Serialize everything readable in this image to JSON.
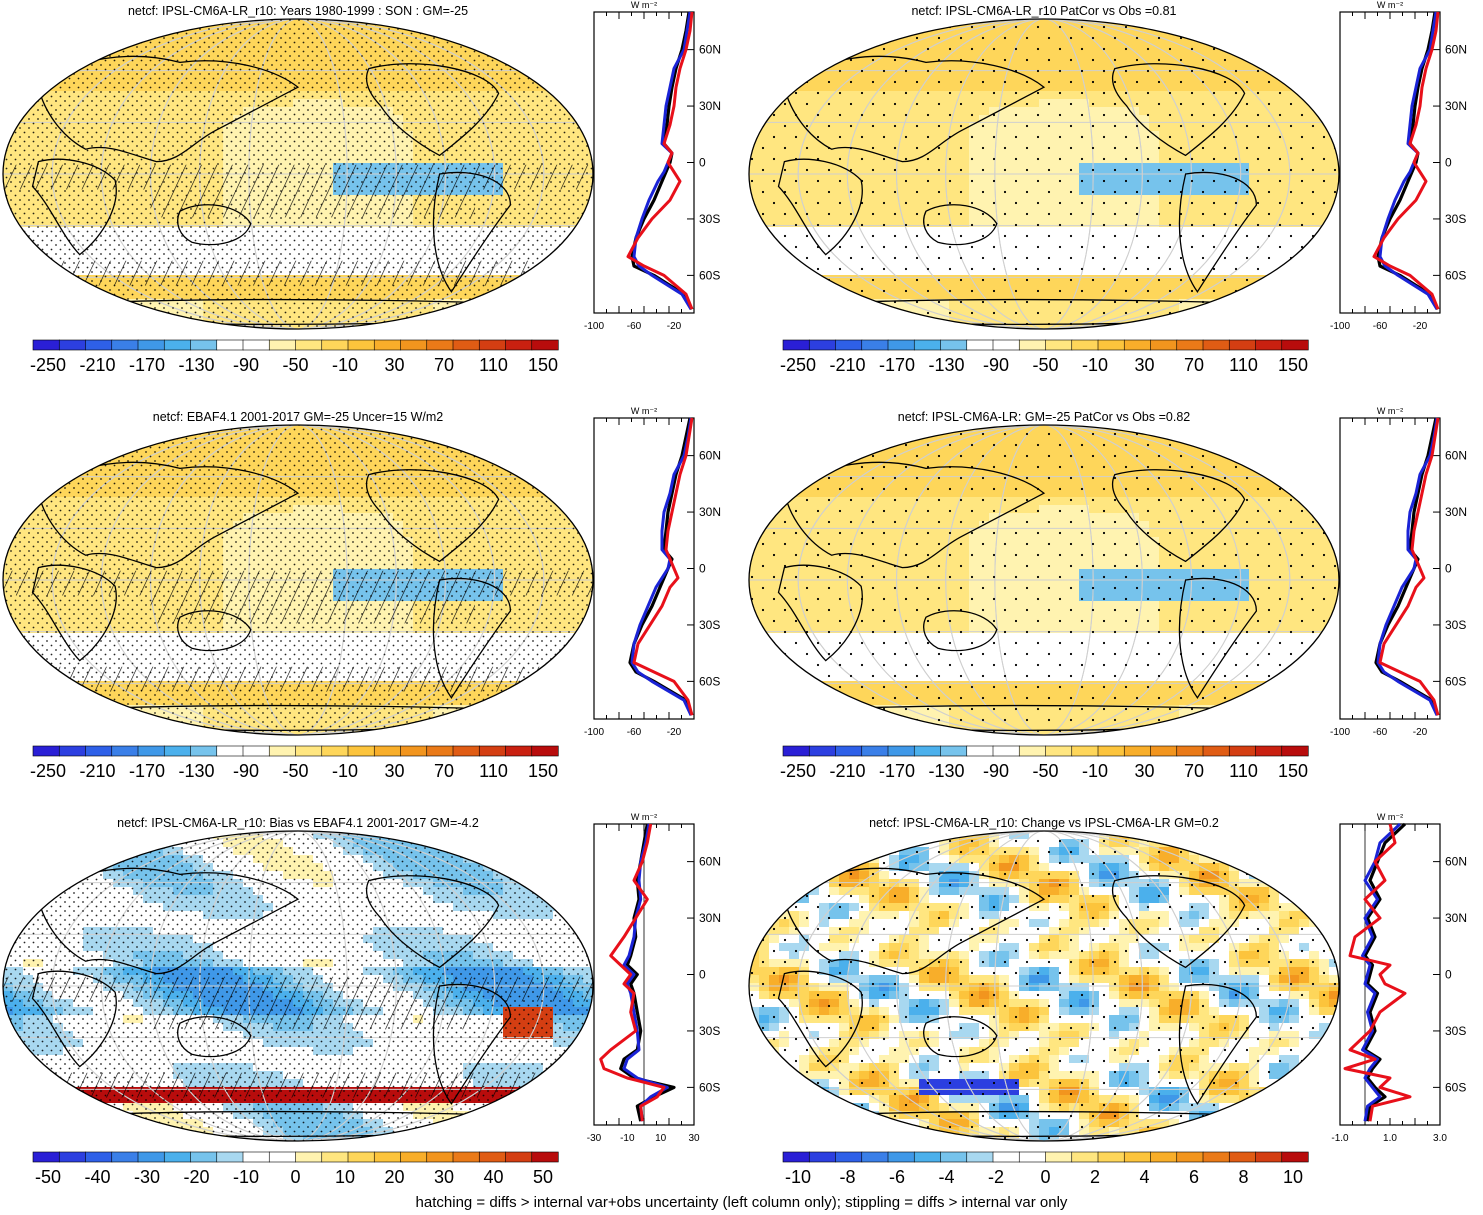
{
  "footer": "hatching = diffs > internal var+obs uncertainty (left column only); stippling = diffs > internal var only",
  "scales": {
    "main": {
      "labels": [
        "-250",
        "-210",
        "-170",
        "-130",
        "-90",
        "-50",
        "-10",
        "30",
        "70",
        "110",
        "150"
      ],
      "colors": [
        "#2a1fd6",
        "#2c3fe0",
        "#2e60e8",
        "#3a7fe8",
        "#3f98e8",
        "#4bb0ec",
        "#76c3ec",
        "#ffffff",
        "#ffffff",
        "#fff3b0",
        "#ffe680",
        "#fed65a",
        "#fcc43c",
        "#f8ae2a",
        "#f2951e",
        "#ea7a18",
        "#e05c14",
        "#d43e12",
        "#c92010",
        "#b80c0c"
      ]
    },
    "bias": {
      "labels": [
        "-50",
        "-40",
        "-30",
        "-20",
        "-10",
        "0",
        "10",
        "20",
        "30",
        "40",
        "50"
      ],
      "colors": [
        "#2a1fd6",
        "#2c3fe0",
        "#2e60e8",
        "#3a7fe8",
        "#3f98e8",
        "#4bb0ec",
        "#76c3ec",
        "#a8d8f0",
        "#ffffff",
        "#ffffff",
        "#fff3b0",
        "#ffe680",
        "#fed65a",
        "#fcc43c",
        "#f8ae2a",
        "#f2951e",
        "#ea7a18",
        "#e05c14",
        "#d43e12",
        "#b80c0c"
      ]
    },
    "change": {
      "labels": [
        "-10",
        "-8",
        "-6",
        "-4",
        "-2",
        "0",
        "2",
        "4",
        "6",
        "8",
        "10"
      ],
      "colors": [
        "#2a1fd6",
        "#2c3fe0",
        "#2e60e8",
        "#3a7fe8",
        "#3f98e8",
        "#4bb0ec",
        "#76c3ec",
        "#a8d8f0",
        "#ffffff",
        "#ffffff",
        "#fff3b0",
        "#ffe680",
        "#fed65a",
        "#fcc43c",
        "#f8ae2a",
        "#f2951e",
        "#ea7a18",
        "#e05c14",
        "#d43e12",
        "#b80c0c"
      ]
    }
  },
  "lat_labels": [
    "60N",
    "30N",
    "0",
    "30S",
    "60S"
  ],
  "units_label": "W m⁻²",
  "colors": {
    "obs_line": "#e8101a",
    "model_line": "#000000",
    "model2_line": "#1a23d6",
    "land_outline": "#000000",
    "grid": "#cfcfcf"
  },
  "chart_data": [
    {
      "id": "p1",
      "type": "contour-map",
      "title": "netcf: IPSL-CM6A-LR_r10: Years 1980-1999 : SON : GM=-25",
      "scale": "main",
      "field": "mean",
      "hatch": true,
      "stipple": "dense",
      "profile": {
        "xlim": [
          -100,
          0
        ],
        "xticks": [
          "-100",
          "-60",
          "-20"
        ],
        "lat": [
          80,
          70,
          60,
          50,
          40,
          30,
          20,
          10,
          5,
          0,
          -5,
          -10,
          -20,
          -30,
          -40,
          -50,
          -55,
          -60,
          -70,
          -78
        ],
        "series": [
          {
            "name": "model",
            "color": "#000000",
            "values": [
              -5,
              -8,
              -12,
              -18,
              -22,
              -25,
              -27,
              -30,
              -22,
              -24,
              -28,
              -32,
              -40,
              -50,
              -58,
              -62,
              -60,
              -40,
              -10,
              -2
            ]
          },
          {
            "name": "model2",
            "color": "#1a23d6",
            "values": [
              -4,
              -7,
              -10,
              -20,
              -24,
              -28,
              -30,
              -32,
              -22,
              -26,
              -30,
              -36,
              -45,
              -52,
              -58,
              -60,
              -55,
              -42,
              -12,
              -3
            ]
          },
          {
            "name": "obs",
            "color": "#e8101a",
            "values": [
              -2,
              -4,
              -8,
              -14,
              -18,
              -20,
              -24,
              -30,
              -22,
              -26,
              -20,
              -14,
              -24,
              -42,
              -56,
              -66,
              -50,
              -30,
              -8,
              -2
            ]
          }
        ]
      }
    },
    {
      "id": "p2",
      "type": "contour-map",
      "title": "netcf: IPSL-CM6A-LR_r10 PatCor vs Obs =0.81",
      "scale": "main",
      "field": "mean",
      "hatch": false,
      "stipple": "sparse",
      "profile": {
        "xlim": [
          -100,
          0
        ],
        "xticks": [
          "-100",
          "-60",
          "-20"
        ],
        "lat": [
          80,
          70,
          60,
          50,
          40,
          30,
          20,
          10,
          5,
          0,
          -5,
          -10,
          -20,
          -30,
          -40,
          -50,
          -55,
          -60,
          -70,
          -78
        ],
        "series": [
          {
            "name": "model",
            "color": "#000000",
            "values": [
              -5,
              -8,
              -12,
              -18,
              -22,
              -25,
              -27,
              -30,
              -22,
              -24,
              -28,
              -32,
              -40,
              -50,
              -58,
              -62,
              -60,
              -40,
              -10,
              -2
            ]
          },
          {
            "name": "model2",
            "color": "#1a23d6",
            "values": [
              -4,
              -7,
              -10,
              -20,
              -24,
              -28,
              -30,
              -32,
              -22,
              -26,
              -30,
              -36,
              -45,
              -52,
              -58,
              -60,
              -55,
              -42,
              -12,
              -3
            ]
          },
          {
            "name": "obs",
            "color": "#e8101a",
            "values": [
              -2,
              -4,
              -8,
              -14,
              -18,
              -20,
              -24,
              -30,
              -22,
              -26,
              -20,
              -14,
              -24,
              -42,
              -56,
              -66,
              -50,
              -30,
              -8,
              -2
            ]
          }
        ]
      }
    },
    {
      "id": "p3",
      "type": "contour-map",
      "title": "netcf: EBAF4.1 2001-2017 GM=-25 Uncer=15 W/m2",
      "scale": "main",
      "field": "mean",
      "hatch": true,
      "stipple": "dense",
      "profile": {
        "xlim": [
          -100,
          0
        ],
        "xticks": [
          "-100",
          "-60",
          "-20"
        ],
        "lat": [
          80,
          70,
          60,
          50,
          40,
          30,
          20,
          10,
          5,
          0,
          -5,
          -10,
          -20,
          -30,
          -40,
          -50,
          -55,
          -60,
          -70,
          -78
        ],
        "series": [
          {
            "name": "model",
            "color": "#000000",
            "values": [
              -4,
              -8,
              -12,
              -18,
              -22,
              -26,
              -28,
              -30,
              -22,
              -26,
              -30,
              -34,
              -42,
              -52,
              -60,
              -64,
              -58,
              -40,
              -8,
              -2
            ]
          },
          {
            "name": "model2",
            "color": "#1a23d6",
            "values": [
              -3,
              -6,
              -10,
              -20,
              -24,
              -30,
              -32,
              -32,
              -24,
              -26,
              -32,
              -38,
              -46,
              -54,
              -60,
              -62,
              -56,
              -42,
              -10,
              -3
            ]
          },
          {
            "name": "obs",
            "color": "#e8101a",
            "values": [
              -2,
              -5,
              -8,
              -14,
              -18,
              -22,
              -26,
              -28,
              -24,
              -20,
              -16,
              -24,
              -32,
              -44,
              -56,
              -60,
              -40,
              -20,
              -6,
              -2
            ]
          }
        ]
      }
    },
    {
      "id": "p4",
      "type": "contour-map",
      "title": "netcf: IPSL-CM6A-LR: GM=-25 PatCor vs Obs =0.82",
      "scale": "main",
      "field": "mean",
      "hatch": false,
      "stipple": "sparse",
      "profile": {
        "xlim": [
          -100,
          0
        ],
        "xticks": [
          "-100",
          "-60",
          "-20"
        ],
        "lat": [
          80,
          70,
          60,
          50,
          40,
          30,
          20,
          10,
          5,
          0,
          -5,
          -10,
          -20,
          -30,
          -40,
          -50,
          -55,
          -60,
          -70,
          -78
        ],
        "series": [
          {
            "name": "model",
            "color": "#000000",
            "values": [
              -4,
              -8,
              -12,
              -18,
              -22,
              -26,
              -28,
              -30,
              -22,
              -26,
              -30,
              -34,
              -42,
              -52,
              -60,
              -64,
              -58,
              -40,
              -8,
              -2
            ]
          },
          {
            "name": "model2",
            "color": "#1a23d6",
            "values": [
              -3,
              -6,
              -10,
              -20,
              -24,
              -30,
              -32,
              -32,
              -24,
              -26,
              -32,
              -38,
              -46,
              -54,
              -60,
              -62,
              -56,
              -42,
              -10,
              -3
            ]
          },
          {
            "name": "obs",
            "color": "#e8101a",
            "values": [
              -2,
              -5,
              -8,
              -14,
              -18,
              -22,
              -26,
              -28,
              -24,
              -20,
              -16,
              -24,
              -32,
              -44,
              -56,
              -60,
              -40,
              -20,
              -6,
              -2
            ]
          }
        ]
      }
    },
    {
      "id": "p5",
      "type": "contour-map",
      "title": "netcf: IPSL-CM6A-LR_r10: Bias vs EBAF4.1 2001-2017  GM=-4.2",
      "scale": "bias",
      "field": "bias",
      "hatch": true,
      "stipple": "dense",
      "profile": {
        "xlim": [
          -30,
          30
        ],
        "xticks": [
          "-30",
          "-10",
          "10",
          "30"
        ],
        "lat": [
          80,
          70,
          60,
          50,
          40,
          30,
          20,
          10,
          5,
          0,
          -5,
          -10,
          -20,
          -30,
          -40,
          -45,
          -50,
          -55,
          -60,
          -65,
          -70,
          -78
        ],
        "series": [
          {
            "name": "model",
            "color": "#000000",
            "values": [
              2,
              0,
              -2,
              -4,
              -3,
              -6,
              -5,
              -8,
              -10,
              -4,
              -8,
              -6,
              -4,
              -2,
              -4,
              -12,
              -14,
              -6,
              18,
              6,
              -4,
              -2
            ]
          },
          {
            "name": "model2",
            "color": "#1a23d6",
            "values": [
              3,
              1,
              -2,
              -3,
              -2,
              -5,
              -6,
              -9,
              -12,
              -6,
              -10,
              -8,
              -6,
              -4,
              -3,
              -10,
              -12,
              -4,
              14,
              4,
              -2,
              -1
            ]
          },
          {
            "name": "obs",
            "color": "#e8101a",
            "values": [
              4,
              2,
              -1,
              -6,
              2,
              -5,
              -12,
              -20,
              -14,
              -8,
              -12,
              -6,
              -8,
              -5,
              -20,
              -26,
              -24,
              -10,
              12,
              8,
              -2,
              -1
            ]
          }
        ]
      }
    },
    {
      "id": "p6",
      "type": "contour-map",
      "title": "netcf: IPSL-CM6A-LR_r10: Change vs IPSL-CM6A-LR GM=0.2",
      "scale": "change",
      "field": "change",
      "hatch": false,
      "stipple": "sparse",
      "profile": {
        "xlim": [
          -1.0,
          3.0
        ],
        "xticks": [
          "-1.0",
          "1.0",
          "3.0"
        ],
        "lat": [
          80,
          70,
          60,
          50,
          40,
          30,
          20,
          10,
          5,
          0,
          -5,
          -10,
          -20,
          -30,
          -40,
          -45,
          -50,
          -55,
          -60,
          -65,
          -70,
          -78
        ],
        "series": [
          {
            "name": "model",
            "color": "#000000",
            "values": [
              1.6,
              0.8,
              0.5,
              0.2,
              0.6,
              0.1,
              0.4,
              0.0,
              0.3,
              0.2,
              0.1,
              0.5,
              0.2,
              0.4,
              0.0,
              0.6,
              0.3,
              0.1,
              0.4,
              0.8,
              0.2,
              0.1
            ]
          },
          {
            "name": "model2",
            "color": "#1a23d6",
            "values": [
              1.4,
              0.6,
              0.4,
              0.0,
              0.5,
              0.0,
              0.3,
              -0.1,
              0.2,
              0.1,
              0.0,
              0.4,
              0.1,
              0.3,
              -0.1,
              0.5,
              0.2,
              0.0,
              0.3,
              0.6,
              0.1,
              0.0
            ]
          },
          {
            "name": "obs",
            "color": "#e8101a",
            "values": [
              1.0,
              1.2,
              0.4,
              0.8,
              0.0,
              0.6,
              -0.4,
              -0.6,
              1.0,
              0.6,
              0.8,
              1.6,
              0.6,
              0.2,
              -0.6,
              0.4,
              -0.8,
              1.0,
              0.6,
              1.8,
              0.3,
              0.2
            ]
          }
        ]
      }
    }
  ]
}
